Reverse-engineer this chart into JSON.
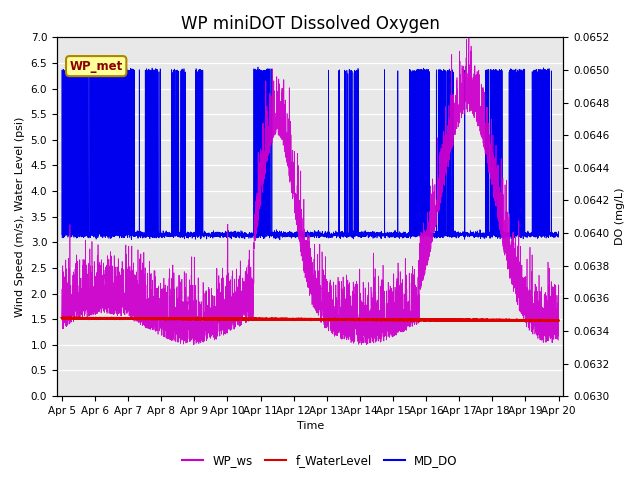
{
  "title": "WP miniDOT Dissolved Oxygen",
  "xlabel": "Time",
  "ylabel_left": "Wind Speed (m/s), Water Level (psi)",
  "ylabel_right": "DO (mg/L)",
  "ylim_left": [
    0.0,
    7.0
  ],
  "ylim_right": [
    0.063,
    0.0652
  ],
  "yticks_left": [
    0.0,
    0.5,
    1.0,
    1.5,
    2.0,
    2.5,
    3.0,
    3.5,
    4.0,
    4.5,
    5.0,
    5.5,
    6.0,
    6.5,
    7.0
  ],
  "yticks_right": [
    0.063,
    0.0632,
    0.0634,
    0.0636,
    0.0638,
    0.064,
    0.0642,
    0.0644,
    0.0646,
    0.0648,
    0.065,
    0.0652
  ],
  "xlim_days": [
    4.85,
    20.15
  ],
  "xtick_days": [
    5,
    6,
    7,
    8,
    9,
    10,
    11,
    12,
    13,
    14,
    15,
    16,
    17,
    18,
    19,
    20
  ],
  "xtick_labels": [
    "Apr 5",
    "Apr 6",
    "Apr 7",
    "Apr 8",
    "Apr 9",
    "Apr 10",
    "Apr 11",
    "Apr 12",
    "Apr 13",
    "Apr 14",
    "Apr 15",
    "Apr 16",
    "Apr 17",
    "Apr 18",
    "Apr 19",
    "Apr 20"
  ],
  "color_ws": "#CC00CC",
  "color_water": "#DD0000",
  "color_do": "#0000EE",
  "annotation_text": "WP_met",
  "annotation_bg": "#FFFF99",
  "annotation_border": "#AA8800",
  "legend_labels": [
    "WP_ws",
    "f_WaterLevel",
    "MD_DO"
  ],
  "bg_color": "#E8E8E8",
  "title_fontsize": 12,
  "label_fontsize": 8,
  "tick_fontsize": 7.5
}
